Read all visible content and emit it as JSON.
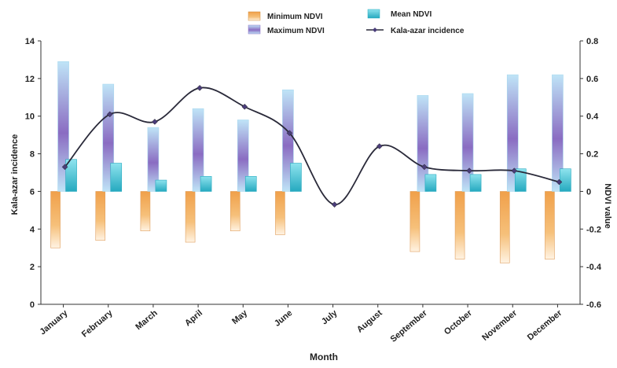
{
  "chart_data": {
    "type": "bar",
    "title": "",
    "xlabel": "Month",
    "ylabel": "Kala-azar incidence",
    "y2label": "NDVI value",
    "ylim": [
      0,
      14
    ],
    "y2lim": [
      -0.6,
      0.8
    ],
    "y_ticks": [
      "0",
      "2",
      "4",
      "6",
      "8",
      "10",
      "12",
      "14"
    ],
    "y2_ticks": [
      "-0.6",
      "-0.4",
      "-0.2",
      "0",
      "0.2",
      "0.4",
      "0.6",
      "0.8"
    ],
    "categories": [
      "January",
      "February",
      "March",
      "April",
      "May",
      "June",
      "July",
      "August",
      "September",
      "October",
      "November",
      "December"
    ],
    "series": [
      {
        "name": "Minimum NDVI",
        "axis": "right",
        "kind": "bar",
        "color": "#f3a64a",
        "values": [
          -0.3,
          -0.26,
          -0.21,
          -0.27,
          -0.21,
          -0.23,
          null,
          null,
          -0.32,
          -0.36,
          -0.38,
          -0.36
        ]
      },
      {
        "name": "Maximum NDVI",
        "axis": "right",
        "kind": "bar",
        "color": "#8c6fc4",
        "values": [
          0.69,
          0.57,
          0.34,
          0.44,
          0.38,
          0.54,
          null,
          null,
          0.51,
          0.52,
          0.62,
          0.62
        ]
      },
      {
        "name": "Mean NDVI",
        "axis": "right",
        "kind": "bar",
        "color": "#2fb7c7",
        "values": [
          0.17,
          0.15,
          0.06,
          0.08,
          0.08,
          0.15,
          null,
          null,
          0.09,
          0.09,
          0.12,
          0.12
        ]
      },
      {
        "name": "Kala-azar incidence",
        "axis": "left",
        "kind": "line",
        "color": "#2a2a3a",
        "values": [
          7.3,
          10.1,
          9.7,
          11.5,
          10.5,
          9.1,
          5.3,
          8.4,
          7.3,
          7.1,
          7.1,
          6.5
        ]
      }
    ],
    "grid": false,
    "legend_position": "top-center"
  },
  "colors": {
    "min_light": "#fde6c8",
    "min_dark": "#f0a04a",
    "max_light": "#bfe4f7",
    "max_dark": "#8a6cc2",
    "mean_light": "#8ee3ee",
    "mean_dark": "#25a9bf",
    "line": "#2a2a3a",
    "marker": "#4a3d7a",
    "axis": "#333333"
  }
}
